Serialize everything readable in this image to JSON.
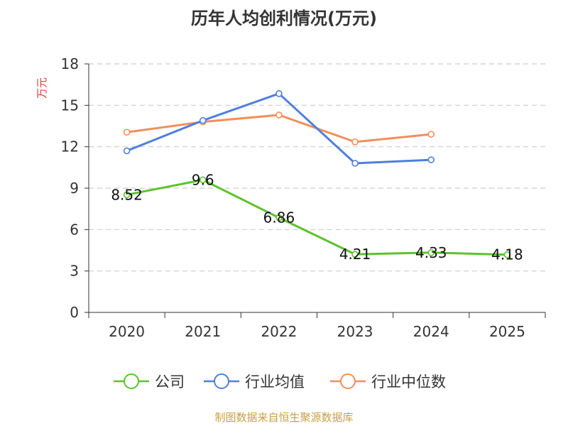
{
  "chart_data": {
    "type": "line",
    "title": "历年人均创利情况(万元)",
    "ylabel": "万元",
    "xlabel": "",
    "categories": [
      "2020",
      "2021",
      "2022",
      "2023",
      "2024",
      "2025"
    ],
    "ylim": [
      0,
      18
    ],
    "yticks": [
      0,
      3,
      6,
      9,
      12,
      15,
      18
    ],
    "grid": true,
    "legend_position": "bottom",
    "series": [
      {
        "name": "公司",
        "color": "#5ec22c",
        "values": [
          8.52,
          9.6,
          6.86,
          4.21,
          4.33,
          4.18
        ],
        "labels": [
          "8.52",
          "9.6",
          "6.86",
          "4.21",
          "4.33",
          "4.18"
        ],
        "show_labels": true
      },
      {
        "name": "行业均值",
        "color": "#4f7fdc",
        "values": [
          11.7,
          13.9,
          15.85,
          10.8,
          11.05,
          null
        ],
        "show_labels": false
      },
      {
        "name": "行业中位数",
        "color": "#f28e5b",
        "values": [
          13.05,
          13.8,
          14.3,
          12.35,
          12.9,
          null
        ],
        "show_labels": false
      }
    ]
  },
  "footer": {
    "source": "制图数据来自恒生聚源数据库"
  },
  "colors": {
    "title": "#333333",
    "axis": "#333333",
    "grid": "#cccccc",
    "ylabel": "#d63b3b",
    "footer": "#c8a046"
  }
}
